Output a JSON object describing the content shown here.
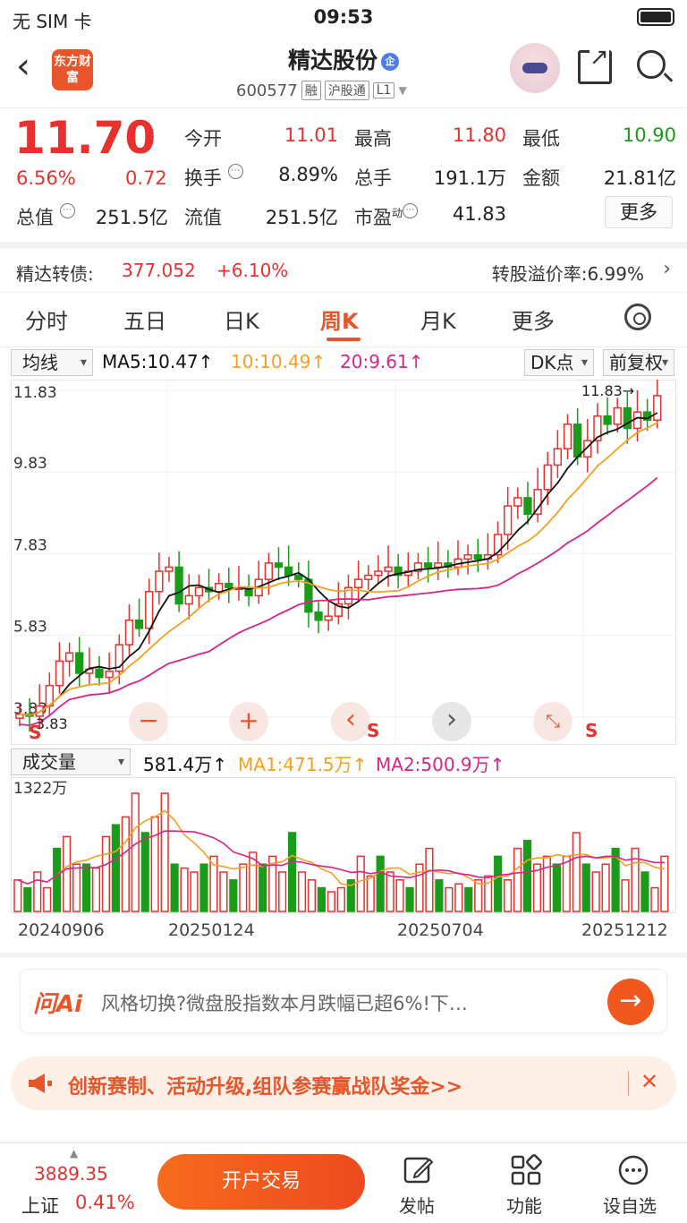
{
  "status": {
    "carrier": "无 SIM 卡",
    "time": "09:53"
  },
  "header": {
    "logo_text": "东方财富",
    "name": "精达股份",
    "badge": "企",
    "code": "600577",
    "tags": [
      "融",
      "沪股通",
      "L1"
    ]
  },
  "quote": {
    "price": "11.70",
    "change_pct": "6.56%",
    "change_val": "0.72",
    "fields": [
      {
        "label": "今开",
        "value": "11.01",
        "color": "red"
      },
      {
        "label": "最高",
        "value": "11.80",
        "color": "red"
      },
      {
        "label": "最低",
        "value": "10.90",
        "color": "green"
      },
      {
        "label": "换手",
        "value": "8.89%",
        "color": "plain"
      },
      {
        "label": "总手",
        "value": "191.1万",
        "color": "plain"
      },
      {
        "label": "金额",
        "value": "21.81亿",
        "color": "plain"
      },
      {
        "label": "总值",
        "value": "251.5亿",
        "color": "plain"
      },
      {
        "label": "流值",
        "value": "251.5亿",
        "color": "plain"
      },
      {
        "label": "市盈",
        "value": "41.83",
        "color": "plain"
      }
    ],
    "pe_sup": "动",
    "more": "更多"
  },
  "bond": {
    "label": "精达转债:",
    "price": "377.052",
    "change": "+6.10%",
    "premium": "转股溢价率:6.99%"
  },
  "tabs": [
    "分时",
    "五日",
    "日K",
    "周K",
    "月K",
    "更多"
  ],
  "active_tab": "周K",
  "kline": {
    "selector": "均线",
    "ma5": "MA5:10.47↑",
    "ma10": "10:10.49↑",
    "ma20": "20:9.61↑",
    "dk": "DK点",
    "adjust": "前复权",
    "y_labels": [
      "11.83",
      "9.83",
      "7.83",
      "5.83",
      "3.83"
    ],
    "max_marker": "11.83→",
    "min_marker": "3.83",
    "colors": {
      "up": "#e8312f",
      "down": "#1a9c1a",
      "ma5": "#111111",
      "ma10": "#f5a020",
      "ma20": "#d9238a"
    }
  },
  "volume": {
    "selector": "成交量",
    "value": "581.4万↑",
    "ma1": "MA1:471.5万↑",
    "ma2": "MA2:500.9万↑",
    "y_label": "1322万",
    "dates": [
      "20240906",
      "20250124",
      "20250704",
      "20251212"
    ]
  },
  "controls": {
    "zoom_out": "−",
    "zoom_in": "+",
    "prev": "‹",
    "next": "›",
    "s_mark": "S"
  },
  "ai": {
    "logo": "问Ai",
    "text": "风格切换?微盘股指数本月跌幅已超6%!下…"
  },
  "banner": {
    "text": "创新赛制、活动升级,组队参赛赢战队奖金>>"
  },
  "bottom": {
    "index_value": "3889.35",
    "index_name": "上证",
    "index_pct": "0.41%",
    "trade": "开户交易",
    "items": [
      "发帖",
      "功能",
      "设自选"
    ]
  }
}
